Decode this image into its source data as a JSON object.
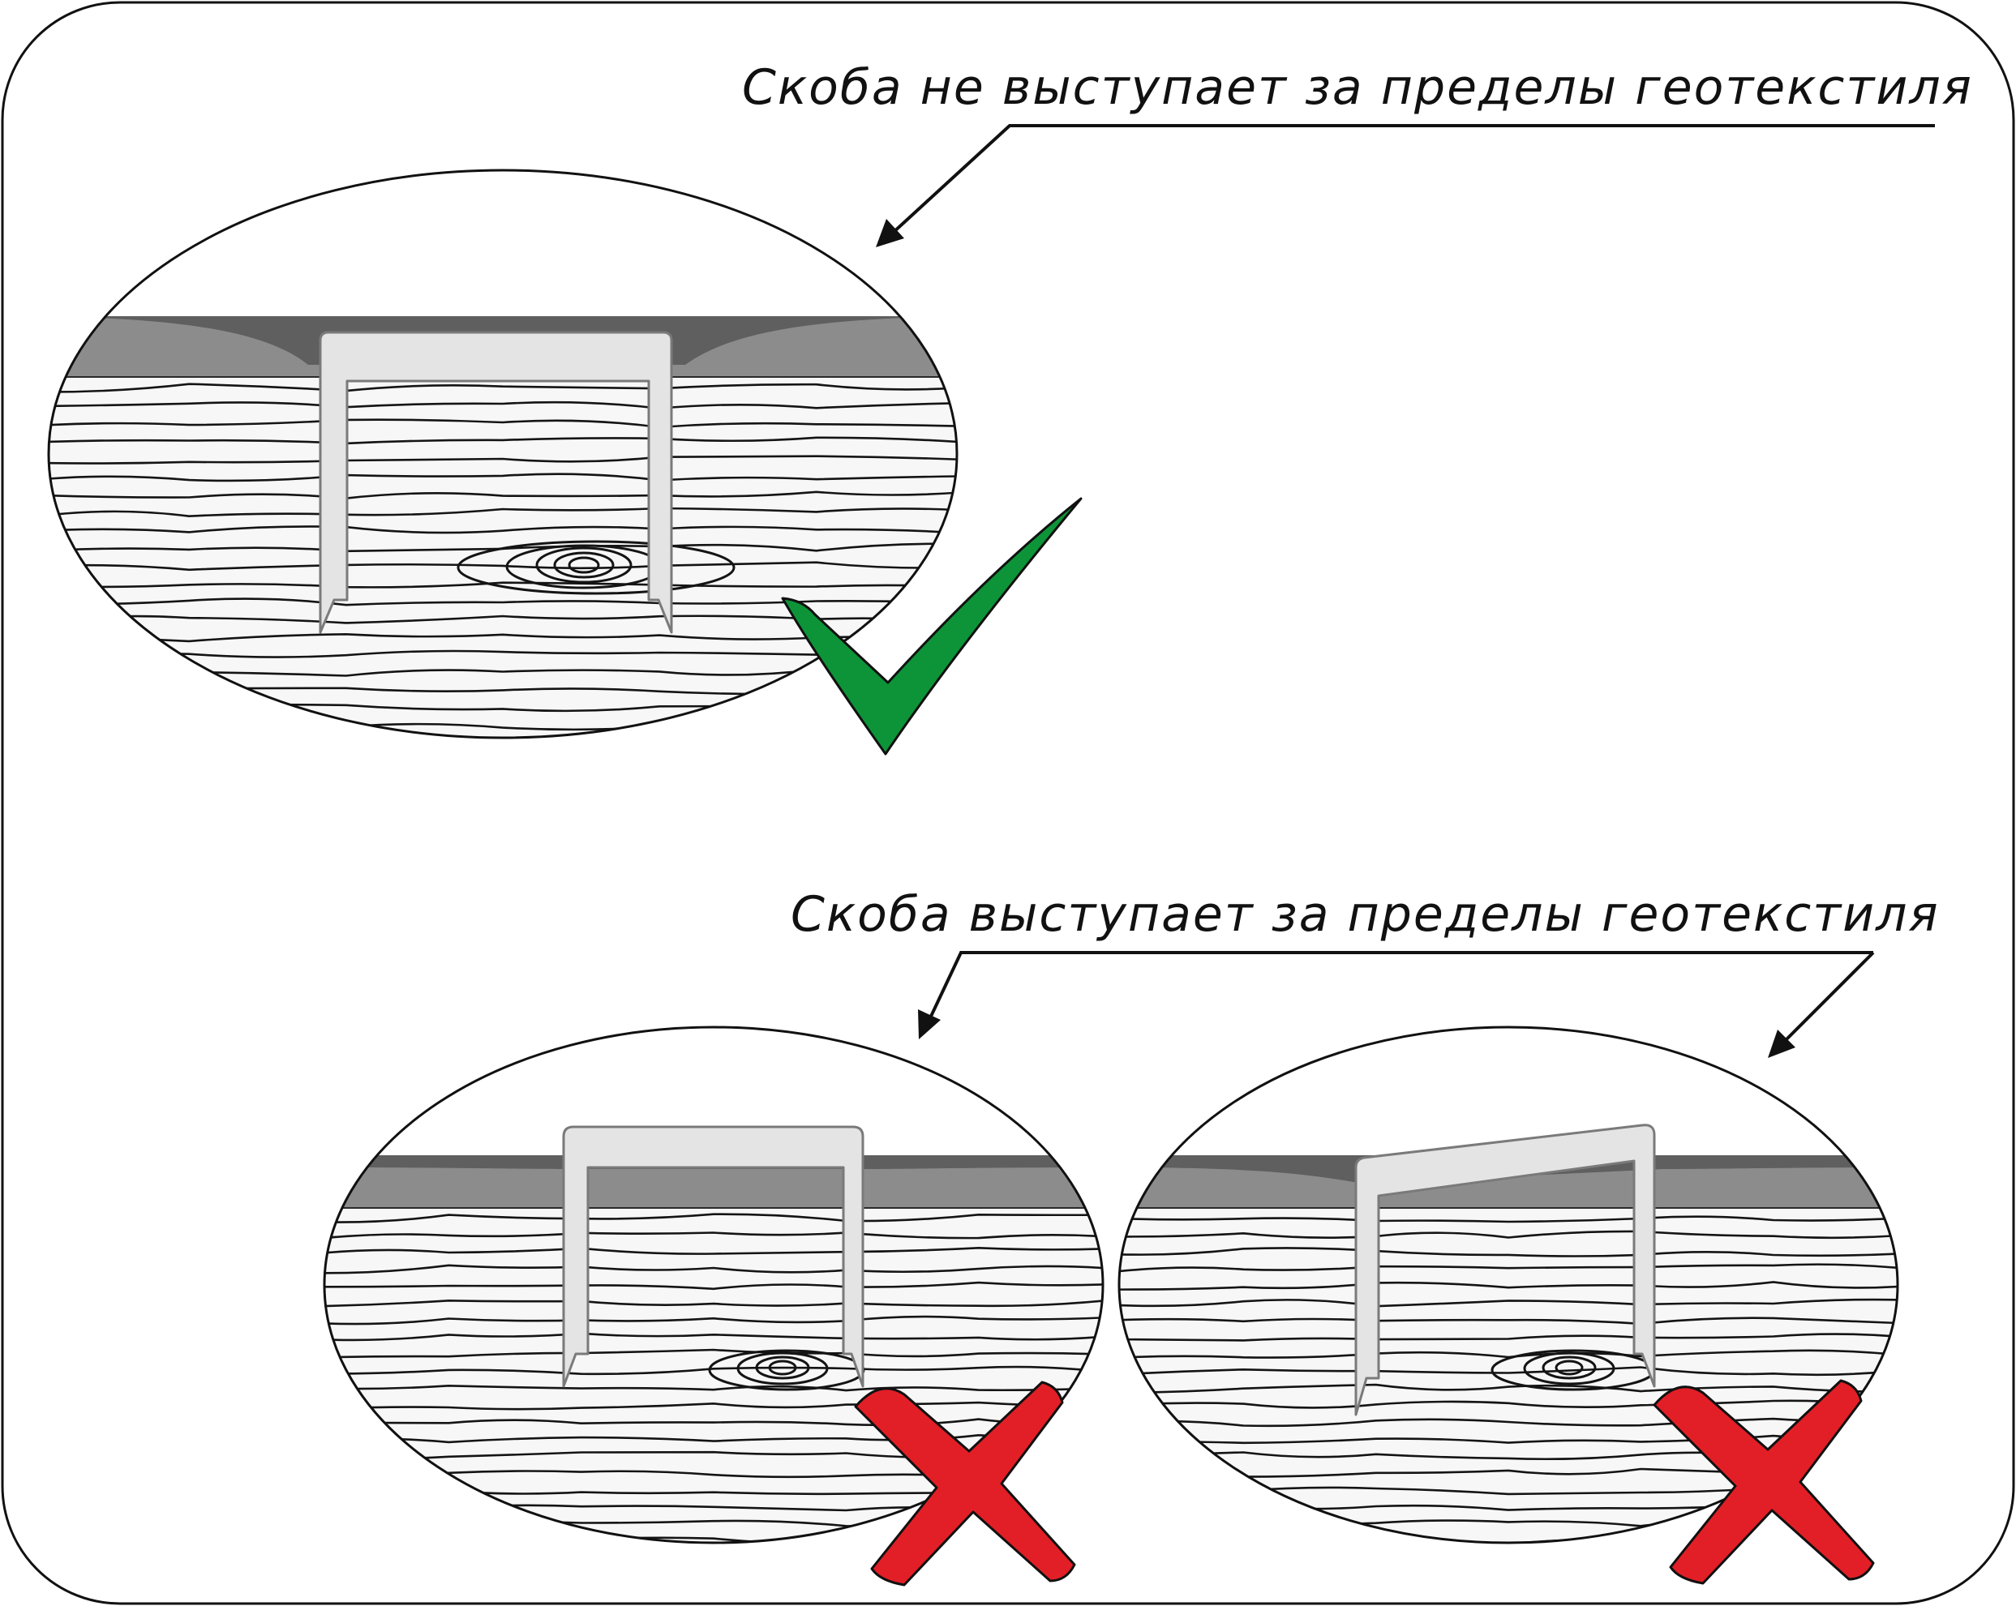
{
  "captions": {
    "correct": "Скоба не выступает за пределы геотекстиля",
    "incorrect": "Скоба выступает за пределы геотекстиля"
  },
  "details": [
    {
      "id": "flush-staple",
      "verdict": "correct",
      "mark": "check-mark-icon"
    },
    {
      "id": "protruding-staple",
      "verdict": "incorrect",
      "mark": "cross-mark-icon"
    },
    {
      "id": "tilted-staple",
      "verdict": "incorrect",
      "mark": "cross-mark-icon"
    }
  ],
  "colors": {
    "frame": "#111111",
    "geotextile_top": "#5f5f5f",
    "geotextile": "#8c8c8c",
    "wood": "#f7f7f7",
    "grain": "#141414",
    "staple_fill": "#e4e4e4",
    "staple_stroke": "#7a7a7a",
    "check_green": "#0d9438",
    "cross_red": "#e21f26"
  }
}
